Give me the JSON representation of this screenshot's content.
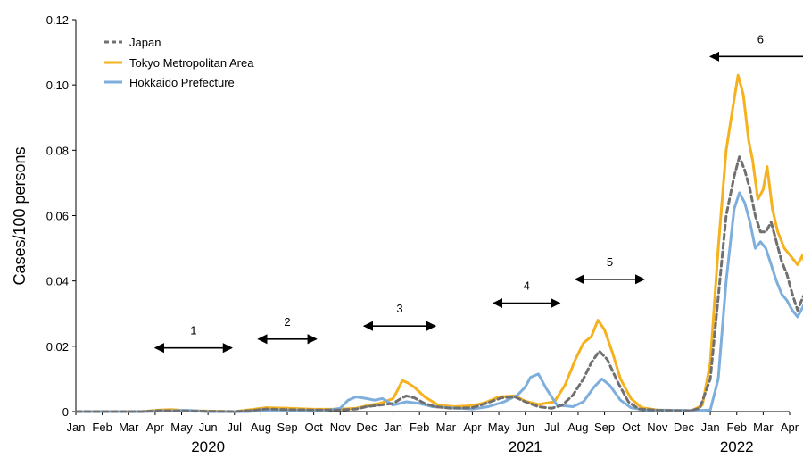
{
  "chart_data": {
    "type": "line",
    "title": "",
    "xlabel": "",
    "ylabel": "Cases/100 persons",
    "ylim": [
      0,
      0.12
    ],
    "y_ticks": [
      "0",
      "0.02",
      "0.04",
      "0.06",
      "0.08",
      "0.10",
      "0.12"
    ],
    "x_range_months": [
      "2020-01",
      "2022-04"
    ],
    "month_ticks": [
      "Jan",
      "Feb",
      "Mar",
      "Apr",
      "May",
      "Jun",
      "Jul",
      "Aug",
      "Sep",
      "Oct",
      "Nov",
      "Dec",
      "Jan",
      "Feb",
      "Mar",
      "Apr",
      "May",
      "Jun",
      "Jul",
      "Aug",
      "Sep",
      "Oct",
      "Nov",
      "Dec",
      "Jan",
      "Feb",
      "Mar",
      "Apr"
    ],
    "year_labels": [
      {
        "text": "2020",
        "month_index": 5
      },
      {
        "text": "2021",
        "month_index": 17
      },
      {
        "text": "2022",
        "month_index": 25
      }
    ],
    "legend_position": "top-left",
    "series": [
      {
        "name": "Japan",
        "color": "#707070",
        "style": "dashed",
        "points": [
          [
            0,
            0
          ],
          [
            2.5,
            0
          ],
          [
            3.2,
            0.0003
          ],
          [
            3.8,
            0.0002
          ],
          [
            4.5,
            0.0001
          ],
          [
            6,
            0
          ],
          [
            6.6,
            0.0003
          ],
          [
            7.2,
            0.0008
          ],
          [
            8,
            0.0006
          ],
          [
            9,
            0.0005
          ],
          [
            10,
            0.0005
          ],
          [
            10.6,
            0.0008
          ],
          [
            11,
            0.0015
          ],
          [
            11.5,
            0.002
          ],
          [
            12,
            0.0025
          ],
          [
            12.3,
            0.004
          ],
          [
            12.5,
            0.0048
          ],
          [
            12.8,
            0.0042
          ],
          [
            13.2,
            0.0025
          ],
          [
            13.6,
            0.0015
          ],
          [
            14.2,
            0.001
          ],
          [
            15,
            0.0012
          ],
          [
            15.5,
            0.0025
          ],
          [
            16.1,
            0.0042
          ],
          [
            16.6,
            0.0045
          ],
          [
            17,
            0.003
          ],
          [
            17.5,
            0.0015
          ],
          [
            18,
            0.001
          ],
          [
            18.4,
            0.002
          ],
          [
            18.8,
            0.005
          ],
          [
            19.2,
            0.01
          ],
          [
            19.5,
            0.015
          ],
          [
            19.8,
            0.0185
          ],
          [
            20.1,
            0.016
          ],
          [
            20.5,
            0.009
          ],
          [
            20.9,
            0.003
          ],
          [
            21.3,
            0.0008
          ],
          [
            22,
            0.0004
          ],
          [
            23.2,
            0.0002
          ],
          [
            23.6,
            0.001
          ],
          [
            24,
            0.01
          ],
          [
            24.3,
            0.035
          ],
          [
            24.6,
            0.06
          ],
          [
            24.9,
            0.072
          ],
          [
            25.1,
            0.078
          ],
          [
            25.3,
            0.074
          ],
          [
            25.5,
            0.068
          ],
          [
            25.7,
            0.06
          ],
          [
            25.9,
            0.055
          ],
          [
            26.1,
            0.055
          ],
          [
            26.3,
            0.058
          ],
          [
            26.5,
            0.052
          ],
          [
            26.7,
            0.046
          ],
          [
            26.9,
            0.042
          ],
          [
            27.1,
            0.036
          ],
          [
            27.3,
            0.031
          ],
          [
            27.5,
            0.035
          ],
          [
            27.65,
            0.037
          ]
        ]
      },
      {
        "name": "Tokyo Metropolitan Area",
        "color": "#F5B21E",
        "style": "solid",
        "points": [
          [
            0,
            0
          ],
          [
            2.5,
            0
          ],
          [
            3.2,
            0.0005
          ],
          [
            3.6,
            0.0006
          ],
          [
            4.2,
            0.0003
          ],
          [
            6,
            0
          ],
          [
            6.5,
            0.0005
          ],
          [
            7.2,
            0.0012
          ],
          [
            8,
            0.001
          ],
          [
            9,
            0.0007
          ],
          [
            10,
            0.0007
          ],
          [
            10.6,
            0.001
          ],
          [
            11,
            0.0018
          ],
          [
            11.5,
            0.0025
          ],
          [
            12,
            0.004
          ],
          [
            12.2,
            0.007
          ],
          [
            12.35,
            0.0095
          ],
          [
            12.55,
            0.0088
          ],
          [
            12.8,
            0.0075
          ],
          [
            13.2,
            0.0045
          ],
          [
            13.7,
            0.002
          ],
          [
            14.3,
            0.0015
          ],
          [
            15,
            0.0018
          ],
          [
            15.5,
            0.0028
          ],
          [
            16,
            0.0045
          ],
          [
            16.6,
            0.0048
          ],
          [
            17,
            0.0032
          ],
          [
            17.5,
            0.0022
          ],
          [
            18.1,
            0.003
          ],
          [
            18.5,
            0.008
          ],
          [
            18.9,
            0.016
          ],
          [
            19.2,
            0.021
          ],
          [
            19.5,
            0.023
          ],
          [
            19.75,
            0.028
          ],
          [
            20,
            0.025
          ],
          [
            20.3,
            0.018
          ],
          [
            20.6,
            0.01
          ],
          [
            21,
            0.004
          ],
          [
            21.4,
            0.0012
          ],
          [
            22,
            0.0005
          ],
          [
            23.3,
            0.0003
          ],
          [
            23.7,
            0.002
          ],
          [
            24,
            0.015
          ],
          [
            24.3,
            0.05
          ],
          [
            24.6,
            0.08
          ],
          [
            24.85,
            0.093
          ],
          [
            25.05,
            0.103
          ],
          [
            25.25,
            0.097
          ],
          [
            25.45,
            0.083
          ],
          [
            25.6,
            0.077
          ],
          [
            25.8,
            0.065
          ],
          [
            26,
            0.068
          ],
          [
            26.15,
            0.075
          ],
          [
            26.35,
            0.062
          ],
          [
            26.55,
            0.055
          ],
          [
            26.8,
            0.05
          ],
          [
            27.1,
            0.047
          ],
          [
            27.3,
            0.045
          ],
          [
            27.5,
            0.048
          ],
          [
            27.65,
            0.042
          ]
        ]
      },
      {
        "name": "Hokkaido Prefecture",
        "color": "#7EAEDB",
        "style": "solid",
        "points": [
          [
            0,
            0
          ],
          [
            2.5,
            0
          ],
          [
            3.5,
            0.0002
          ],
          [
            4.2,
            0.0004
          ],
          [
            5,
            0
          ],
          [
            6.5,
            0
          ],
          [
            7.3,
            0.0004
          ],
          [
            8.5,
            0.0003
          ],
          [
            9.5,
            0.0004
          ],
          [
            10,
            0.001
          ],
          [
            10.3,
            0.0035
          ],
          [
            10.6,
            0.0045
          ],
          [
            11,
            0.004
          ],
          [
            11.3,
            0.0035
          ],
          [
            11.6,
            0.004
          ],
          [
            12,
            0.002
          ],
          [
            12.5,
            0.003
          ],
          [
            13,
            0.0025
          ],
          [
            13.5,
            0.0015
          ],
          [
            14.5,
            0.001
          ],
          [
            15,
            0.0008
          ],
          [
            15.6,
            0.0015
          ],
          [
            16.2,
            0.003
          ],
          [
            16.7,
            0.005
          ],
          [
            17,
            0.0075
          ],
          [
            17.2,
            0.0105
          ],
          [
            17.5,
            0.0115
          ],
          [
            17.8,
            0.007
          ],
          [
            18.2,
            0.002
          ],
          [
            18.8,
            0.0015
          ],
          [
            19.2,
            0.003
          ],
          [
            19.6,
            0.0075
          ],
          [
            19.9,
            0.01
          ],
          [
            20.2,
            0.008
          ],
          [
            20.6,
            0.0035
          ],
          [
            21,
            0.0012
          ],
          [
            21.5,
            0.0005
          ],
          [
            23.5,
            0.0003
          ],
          [
            24,
            0.0005
          ],
          [
            24.3,
            0.01
          ],
          [
            24.6,
            0.04
          ],
          [
            24.9,
            0.062
          ],
          [
            25.1,
            0.067
          ],
          [
            25.3,
            0.064
          ],
          [
            25.5,
            0.058
          ],
          [
            25.7,
            0.05
          ],
          [
            25.9,
            0.052
          ],
          [
            26.1,
            0.05
          ],
          [
            26.3,
            0.045
          ],
          [
            26.5,
            0.04
          ],
          [
            26.7,
            0.036
          ],
          [
            26.9,
            0.034
          ],
          [
            27.1,
            0.031
          ],
          [
            27.3,
            0.029
          ],
          [
            27.5,
            0.032
          ],
          [
            27.65,
            0.035
          ]
        ]
      }
    ],
    "annotations": [
      {
        "label": "1",
        "from_month": 3.0,
        "to_month": 5.9,
        "y": 0.0195,
        "direction": "both"
      },
      {
        "label": "2",
        "from_month": 6.9,
        "to_month": 9.1,
        "y": 0.0222,
        "direction": "both"
      },
      {
        "label": "3",
        "from_month": 10.9,
        "to_month": 13.6,
        "y": 0.0262,
        "direction": "both"
      },
      {
        "label": "4",
        "from_month": 15.8,
        "to_month": 18.3,
        "y": 0.0332,
        "direction": "both"
      },
      {
        "label": "5",
        "from_month": 18.9,
        "to_month": 21.5,
        "y": 0.0405,
        "direction": "both"
      },
      {
        "label": "6",
        "from_month": 24.0,
        "to_month": 27.8,
        "y": 0.1087,
        "direction": "left"
      }
    ]
  }
}
